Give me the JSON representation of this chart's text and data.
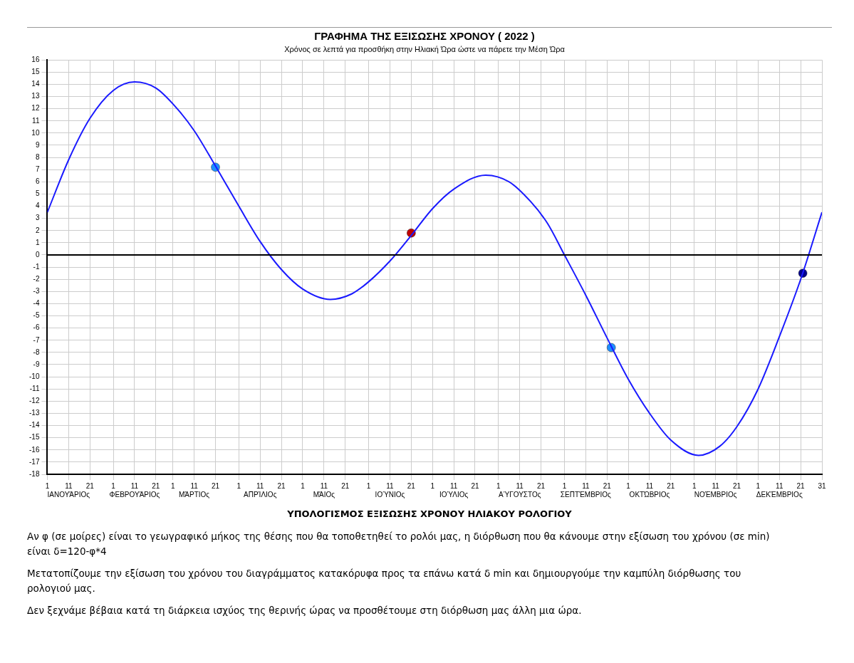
{
  "chart_data": {
    "type": "line",
    "title": "ΓΡΑΦΗΜΑ ΤΗΣ ΕΞΙΣΩΣΗΣ ΧΡΟΝΟΥ ( 2022 )",
    "subtitle": "Χρόνος σε λεπτά για προσθήκη στην Ηλιακή Ώρα ώστε να πάρετε την Μέση Ώρα",
    "series": [
      {
        "marker": "none",
        "color": "#1a1aff",
        "x": [
          "2022-01-01",
          "2022-01-11",
          "2022-01-21",
          "2022-02-01",
          "2022-02-11",
          "2022-02-21",
          "2022-03-01",
          "2022-03-11",
          "2022-03-21",
          "2022-04-01",
          "2022-04-11",
          "2022-04-21",
          "2022-05-01",
          "2022-05-14",
          "2022-05-24",
          "2022-06-01",
          "2022-06-11",
          "2022-06-21",
          "2022-07-01",
          "2022-07-11",
          "2022-07-26",
          "2022-08-06",
          "2022-08-16",
          "2022-08-24",
          "2022-09-01",
          "2022-09-11",
          "2022-09-21",
          "2022-10-01",
          "2022-10-11",
          "2022-10-21",
          "2022-11-03",
          "2022-11-13",
          "2022-11-21",
          "2022-12-01",
          "2022-12-11",
          "2022-12-21",
          "2022-12-31"
        ],
        "values": [
          3.5,
          7.8,
          11.2,
          13.5,
          14.2,
          13.7,
          12.4,
          10.2,
          7.3,
          4.0,
          1.1,
          -1.2,
          -2.8,
          -3.65,
          -3.2,
          -2.2,
          -0.5,
          1.6,
          3.8,
          5.4,
          6.55,
          6.0,
          4.4,
          2.6,
          0.0,
          -3.3,
          -6.8,
          -10.2,
          -13.0,
          -15.2,
          -16.45,
          -15.7,
          -14.1,
          -11.0,
          -6.7,
          -2.0,
          3.5
        ]
      },
      {
        "type": "scatter",
        "marker": "circle",
        "colors": [
          "#1e90ff",
          "#c00000",
          "#1e90ff",
          "#00008b"
        ],
        "x": [
          "2022-03-21",
          "2022-06-21",
          "2022-09-23",
          "2022-12-22"
        ],
        "values": [
          7.2,
          1.8,
          -7.6,
          -1.5
        ]
      }
    ],
    "xlim": [
      "2022-01-01",
      "2022-12-31"
    ],
    "xticks": [
      {
        "value": "2022-01-01",
        "label": "1"
      },
      {
        "value": "2022-01-11",
        "label": "11\nΙΑΝΟΥΆΡΙΟς"
      },
      {
        "value": "2022-01-21",
        "label": "21"
      },
      {
        "value": "2022-02-01",
        "label": "1"
      },
      {
        "value": "2022-02-11",
        "label": "11\nΦΕΒΡΟΥΆΡΙΟς"
      },
      {
        "value": "2022-02-21",
        "label": "21"
      },
      {
        "value": "2022-03-01",
        "label": "1"
      },
      {
        "value": "2022-03-11",
        "label": "11\nΜΆΡΤΙΟς"
      },
      {
        "value": "2022-03-21",
        "label": "21"
      },
      {
        "value": "2022-04-01",
        "label": "1"
      },
      {
        "value": "2022-04-11",
        "label": "11\nΑΠΡΊΛΙΟς"
      },
      {
        "value": "2022-04-21",
        "label": "21"
      },
      {
        "value": "2022-05-01",
        "label": "1"
      },
      {
        "value": "2022-05-11",
        "label": "11\nΜΆΙΟς"
      },
      {
        "value": "2022-05-21",
        "label": "21"
      },
      {
        "value": "2022-06-01",
        "label": "1"
      },
      {
        "value": "2022-06-11",
        "label": "11\nΙΟΎΝΙΟς"
      },
      {
        "value": "2022-06-21",
        "label": "21"
      },
      {
        "value": "2022-07-01",
        "label": "1"
      },
      {
        "value": "2022-07-11",
        "label": "11\nΙΟΎΛΙΟς"
      },
      {
        "value": "2022-07-21",
        "label": "21"
      },
      {
        "value": "2022-08-01",
        "label": "1"
      },
      {
        "value": "2022-08-11",
        "label": "11\nΑΎΓΟΥΣΤΟς"
      },
      {
        "value": "2022-08-21",
        "label": "21"
      },
      {
        "value": "2022-09-01",
        "label": "1"
      },
      {
        "value": "2022-09-11",
        "label": "11\nΣΕΠΤΈΜΒΡΙΟς"
      },
      {
        "value": "2022-09-21",
        "label": "21"
      },
      {
        "value": "2022-10-01",
        "label": "1"
      },
      {
        "value": "2022-10-11",
        "label": "11\nΟΚΤΏΒΡΙΟς"
      },
      {
        "value": "2022-10-21",
        "label": "21"
      },
      {
        "value": "2022-11-01",
        "label": "1"
      },
      {
        "value": "2022-11-11",
        "label": "11\nΝΟΈΜΒΡΙΟς"
      },
      {
        "value": "2022-11-21",
        "label": "21"
      },
      {
        "value": "2022-12-01",
        "label": "1"
      },
      {
        "value": "2022-12-11",
        "label": "11\nΔΕΚΈΜΒΡΙΟς"
      },
      {
        "value": "2022-12-21",
        "label": "21"
      },
      {
        "value": "2022-12-31",
        "label": "31"
      }
    ],
    "ylim": [
      -18,
      16
    ],
    "yticks": [
      -18,
      -17,
      -16,
      -15,
      -14,
      -13,
      -12,
      -11,
      -10,
      -9,
      -8,
      -7,
      -6,
      -5,
      -4,
      -3,
      -2,
      -1,
      0,
      1,
      2,
      3,
      4,
      5,
      6,
      7,
      8,
      9,
      10,
      11,
      12,
      13,
      14,
      15,
      16
    ],
    "grid": true,
    "legend": false,
    "ref_lines": [
      {
        "axis": "y",
        "value": 0,
        "color": "#000000"
      }
    ],
    "annotations": [
      "ΥΠΟΛΟΓΙΣΜΟΣ ΕΞΙΣΩΣΗΣ ΧΡΟΝΟΥ ΗΛΙΑΚΟΥ ΡΟΛΟΓΙΟΥ",
      "Αν φ (σε μοίρες) είναι το γεωγραφικό μήκος της θέσης που θα τοποθετηθεί το ρολόι μας, η διόρθωση που θα κάνουμε στην εξίσωση του χρόνου (σε min) είναι δ=120-φ*4",
      "Μετατοπίζουμε την εξίσωση του χρόνου του διαγράμματος κατακόρυφα προς τα επάνω κατά δ min και δημιουργούμε την καμπύλη διόρθωσης του ρολογιού μας.",
      "Δεν ξεχνάμε βέβαια κατά τη διάρκεια ισχύος της θερινής ώρας να προσθέτουμε στη διόρθωση μας άλλη μια ώρα."
    ]
  }
}
